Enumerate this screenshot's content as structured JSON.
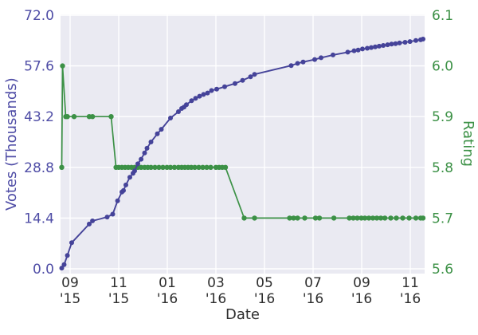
{
  "figure": {
    "xlabel": "Date",
    "ylabel_left": "Votes (Thousands)",
    "ylabel_right": "Rating"
  },
  "colors": {
    "votes": "#454399",
    "votes_text": "#4f4da6",
    "rating": "#3c9146",
    "rating_text": "#3c9146",
    "plot_bg": "#eaeaf2",
    "grid": "#ffffff",
    "xtick_text": "#2e2e2e"
  },
  "chart_data": {
    "type": "line",
    "title": "",
    "xlabel": "Date",
    "grid": true,
    "legend": "none",
    "x_range": [
      "2015-08-18",
      "2016-11-19"
    ],
    "x_axis": {
      "ticks": [
        {
          "date": "2015-09-01",
          "line1": "09",
          "line2": "'15"
        },
        {
          "date": "2015-11-01",
          "line1": "11",
          "line2": "'15"
        },
        {
          "date": "2016-01-01",
          "line1": "01",
          "line2": "'16"
        },
        {
          "date": "2016-03-01",
          "line1": "03",
          "line2": "'16"
        },
        {
          "date": "2016-05-01",
          "line1": "05",
          "line2": "'16"
        },
        {
          "date": "2016-07-01",
          "line1": "07",
          "line2": "'16"
        },
        {
          "date": "2016-09-01",
          "line1": "09",
          "line2": "'16"
        },
        {
          "date": "2016-11-01",
          "line1": "11",
          "line2": "'16"
        }
      ]
    },
    "y_axis_left": {
      "label": "Votes (Thousands)",
      "ylim": [
        0,
        72
      ],
      "ticks": [
        {
          "value": 0.0,
          "label": "0.0"
        },
        {
          "value": 14.4,
          "label": "14.4"
        },
        {
          "value": 28.8,
          "label": "28.8"
        },
        {
          "value": 43.2,
          "label": "43.2"
        },
        {
          "value": 57.6,
          "label": "57.6"
        },
        {
          "value": 72.0,
          "label": "72.0"
        }
      ]
    },
    "y_axis_right": {
      "label": "Rating",
      "ylim": [
        5.6,
        6.1
      ],
      "ticks": [
        {
          "value": 5.6,
          "label": "5.6"
        },
        {
          "value": 5.7,
          "label": "5.7"
        },
        {
          "value": 5.8,
          "label": "5.8"
        },
        {
          "value": 5.9,
          "label": "5.9"
        },
        {
          "value": 6.0,
          "label": "6.0"
        },
        {
          "value": 6.1,
          "label": "6.1"
        }
      ]
    },
    "series": [
      {
        "id": "rating",
        "name": "Rating",
        "axis": "right",
        "color": "#3c9146",
        "points": [
          [
            "2015-08-21",
            5.8
          ],
          [
            "2015-08-22",
            6.0
          ],
          [
            "2015-08-26",
            5.9
          ],
          [
            "2015-08-28",
            5.9
          ],
          [
            "2015-09-06",
            5.9
          ],
          [
            "2015-09-25",
            5.9
          ],
          [
            "2015-09-29",
            5.9
          ],
          [
            "2015-10-22",
            5.9
          ],
          [
            "2015-10-28",
            5.8
          ],
          [
            "2015-11-01",
            5.8
          ],
          [
            "2015-11-05",
            5.8
          ],
          [
            "2015-11-09",
            5.8
          ],
          [
            "2015-11-13",
            5.8
          ],
          [
            "2015-11-17",
            5.8
          ],
          [
            "2015-11-21",
            5.8
          ],
          [
            "2015-11-25",
            5.8
          ],
          [
            "2015-11-29",
            5.8
          ],
          [
            "2015-12-03",
            5.8
          ],
          [
            "2015-12-07",
            5.8
          ],
          [
            "2015-12-11",
            5.8
          ],
          [
            "2015-12-16",
            5.8
          ],
          [
            "2015-12-21",
            5.8
          ],
          [
            "2015-12-26",
            5.8
          ],
          [
            "2015-12-31",
            5.8
          ],
          [
            "2016-01-05",
            5.8
          ],
          [
            "2016-01-10",
            5.8
          ],
          [
            "2016-01-15",
            5.8
          ],
          [
            "2016-01-19",
            5.8
          ],
          [
            "2016-01-23",
            5.8
          ],
          [
            "2016-01-27",
            5.8
          ],
          [
            "2016-01-31",
            5.8
          ],
          [
            "2016-02-05",
            5.8
          ],
          [
            "2016-02-10",
            5.8
          ],
          [
            "2016-02-15",
            5.8
          ],
          [
            "2016-02-20",
            5.8
          ],
          [
            "2016-02-25",
            5.8
          ],
          [
            "2016-03-01",
            5.8
          ],
          [
            "2016-03-05",
            5.8
          ],
          [
            "2016-03-09",
            5.8
          ],
          [
            "2016-03-13",
            5.8
          ],
          [
            "2016-04-06",
            5.7
          ],
          [
            "2016-04-19",
            5.7
          ],
          [
            "2016-06-02",
            5.7
          ],
          [
            "2016-06-07",
            5.7
          ],
          [
            "2016-06-12",
            5.7
          ],
          [
            "2016-06-21",
            5.7
          ],
          [
            "2016-07-04",
            5.7
          ],
          [
            "2016-07-09",
            5.7
          ],
          [
            "2016-07-27",
            5.7
          ],
          [
            "2016-08-16",
            5.7
          ],
          [
            "2016-08-21",
            5.7
          ],
          [
            "2016-08-26",
            5.7
          ],
          [
            "2016-08-31",
            5.7
          ],
          [
            "2016-09-05",
            5.7
          ],
          [
            "2016-09-10",
            5.7
          ],
          [
            "2016-09-15",
            5.7
          ],
          [
            "2016-09-20",
            5.7
          ],
          [
            "2016-09-25",
            5.7
          ],
          [
            "2016-09-30",
            5.7
          ],
          [
            "2016-10-07",
            5.7
          ],
          [
            "2016-10-14",
            5.7
          ],
          [
            "2016-10-22",
            5.7
          ],
          [
            "2016-10-30",
            5.7
          ],
          [
            "2016-11-08",
            5.7
          ],
          [
            "2016-11-14",
            5.7
          ],
          [
            "2016-11-17",
            5.7
          ]
        ]
      },
      {
        "id": "votes",
        "name": "Votes (Thousands)",
        "axis": "left",
        "color": "#454399",
        "points": [
          [
            "2015-08-21",
            0.2
          ],
          [
            "2015-08-24",
            1.2
          ],
          [
            "2015-08-28",
            3.8
          ],
          [
            "2015-09-03",
            7.4
          ],
          [
            "2015-09-25",
            12.7
          ],
          [
            "2015-09-29",
            13.6
          ],
          [
            "2015-10-17",
            14.7
          ],
          [
            "2015-10-24",
            15.5
          ],
          [
            "2015-10-30",
            19.3
          ],
          [
            "2015-11-05",
            21.8
          ],
          [
            "2015-11-07",
            22.2
          ],
          [
            "2015-11-10",
            23.8
          ],
          [
            "2015-11-15",
            26.0
          ],
          [
            "2015-11-19",
            27.1
          ],
          [
            "2015-11-21",
            27.8
          ],
          [
            "2015-11-25",
            29.8
          ],
          [
            "2015-11-29",
            31.1
          ],
          [
            "2015-12-03",
            32.9
          ],
          [
            "2015-12-06",
            34.2
          ],
          [
            "2015-12-11",
            36.0
          ],
          [
            "2015-12-19",
            38.3
          ],
          [
            "2015-12-24",
            39.6
          ],
          [
            "2016-01-05",
            42.8
          ],
          [
            "2016-01-15",
            44.6
          ],
          [
            "2016-01-19",
            45.5
          ],
          [
            "2016-01-22",
            45.9
          ],
          [
            "2016-01-25",
            46.6
          ],
          [
            "2016-02-01",
            47.7
          ],
          [
            "2016-02-06",
            48.4
          ],
          [
            "2016-02-11",
            49.0
          ],
          [
            "2016-02-16",
            49.5
          ],
          [
            "2016-02-21",
            49.9
          ],
          [
            "2016-02-26",
            50.6
          ],
          [
            "2016-03-02",
            51.0
          ],
          [
            "2016-03-12",
            51.7
          ],
          [
            "2016-03-25",
            52.6
          ],
          [
            "2016-04-04",
            53.5
          ],
          [
            "2016-04-14",
            54.5
          ],
          [
            "2016-04-19",
            55.2
          ],
          [
            "2016-06-04",
            57.7
          ],
          [
            "2016-06-12",
            58.3
          ],
          [
            "2016-06-19",
            58.7
          ],
          [
            "2016-07-03",
            59.4
          ],
          [
            "2016-07-11",
            59.9
          ],
          [
            "2016-07-26",
            60.7
          ],
          [
            "2016-08-14",
            61.5
          ],
          [
            "2016-08-22",
            61.9
          ],
          [
            "2016-08-27",
            62.1
          ],
          [
            "2016-09-02",
            62.4
          ],
          [
            "2016-09-08",
            62.6
          ],
          [
            "2016-09-13",
            62.8
          ],
          [
            "2016-09-18",
            63.0
          ],
          [
            "2016-09-23",
            63.2
          ],
          [
            "2016-09-28",
            63.4
          ],
          [
            "2016-10-03",
            63.6
          ],
          [
            "2016-10-08",
            63.8
          ],
          [
            "2016-10-13",
            63.9
          ],
          [
            "2016-10-18",
            64.1
          ],
          [
            "2016-10-25",
            64.3
          ],
          [
            "2016-10-31",
            64.5
          ],
          [
            "2016-11-08",
            64.8
          ],
          [
            "2016-11-14",
            65.0
          ],
          [
            "2016-11-17",
            65.2
          ]
        ]
      }
    ]
  }
}
